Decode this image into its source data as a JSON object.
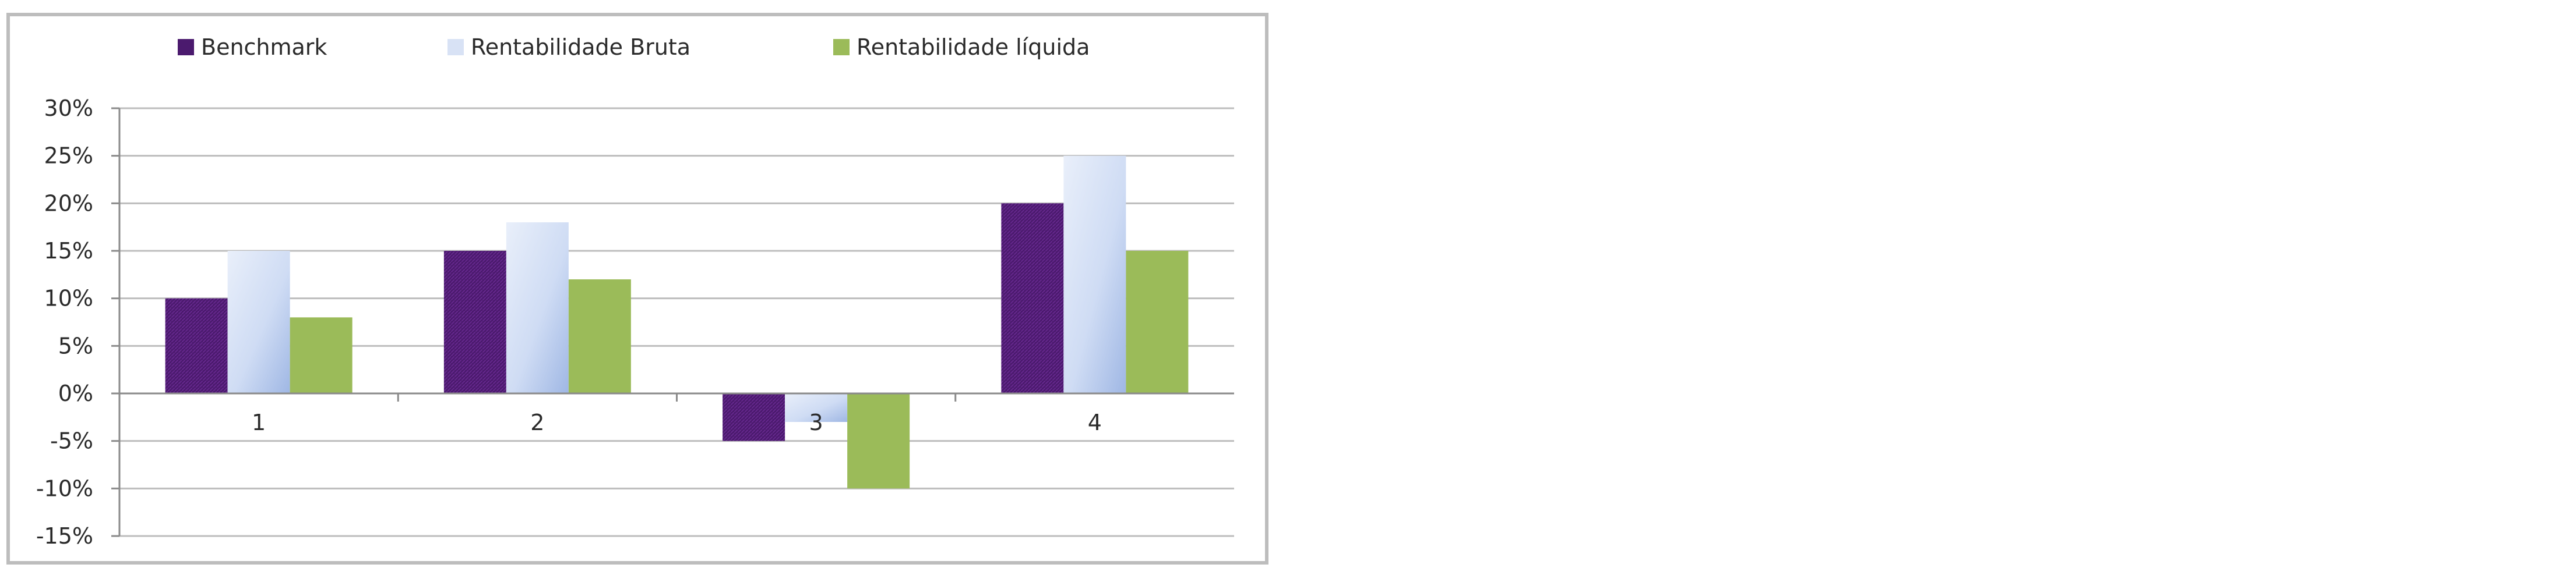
{
  "chart_data": {
    "type": "bar",
    "categories": [
      "1",
      "2",
      "3",
      "4"
    ],
    "series": [
      {
        "name": "Benchmark",
        "values": [
          10,
          15,
          -5,
          20
        ],
        "color": "#4b1a6e"
      },
      {
        "name": "Rentabilidade Bruta",
        "values": [
          15,
          18,
          -3,
          25
        ],
        "color": "#cfdcf4"
      },
      {
        "name": "Rentabilidade líquida",
        "values": [
          8,
          12,
          -10,
          15
        ],
        "color": "#9bbb59"
      }
    ],
    "y_ticks": [
      "30%",
      "25%",
      "20%",
      "15%",
      "10%",
      "5%",
      "0%",
      "-5%",
      "-10%",
      "-15%"
    ],
    "ylim": [
      -15,
      30
    ],
    "y_unit": "%",
    "grid": true,
    "legend_position": "top"
  }
}
